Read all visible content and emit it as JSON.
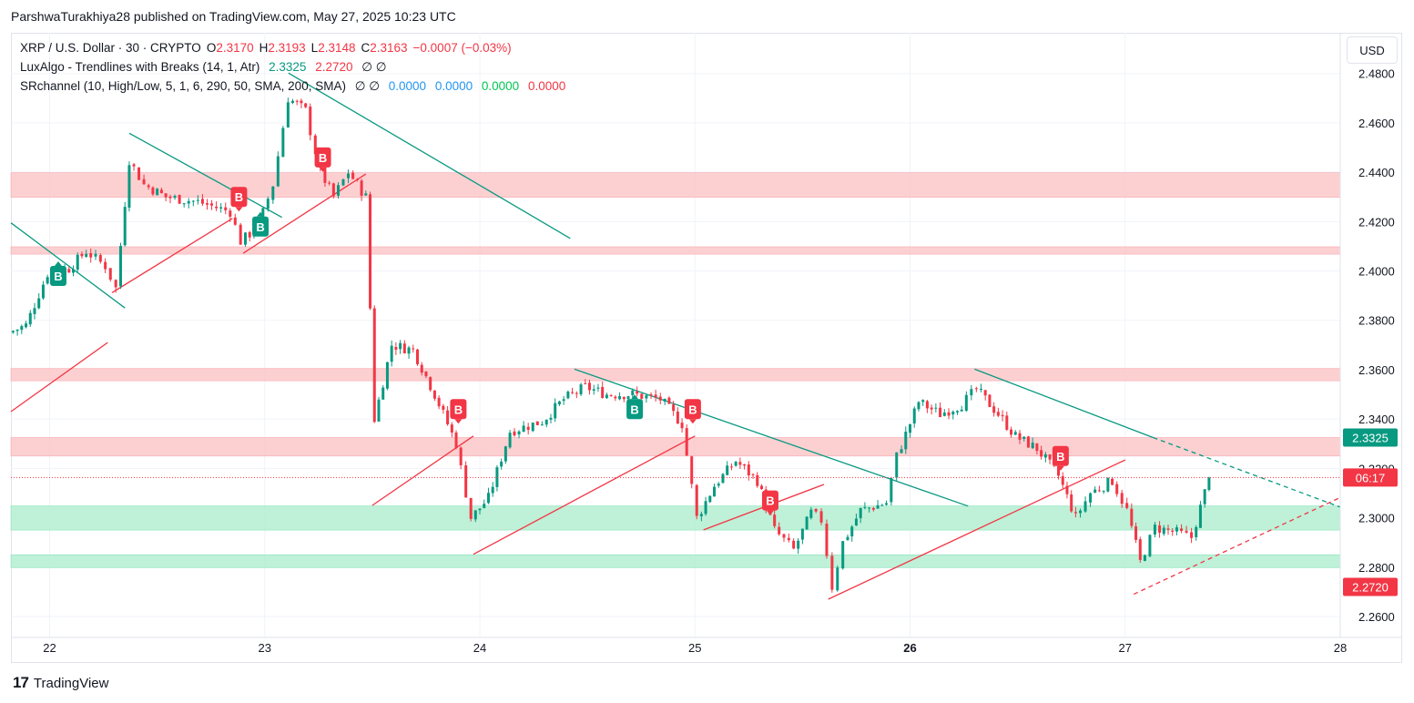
{
  "header": {
    "text": "ParshwaTurakhiya28 published on TradingView.com, May 27, 2025 10:23 UTC"
  },
  "legend": {
    "symbol": "XRP / U.S. Dollar · 30 · CRYPTO",
    "o_label": "O",
    "o_value": "2.3170",
    "h_label": "H",
    "h_value": "2.3193",
    "l_label": "L",
    "l_value": "2.3148",
    "c_label": "C",
    "c_value": "2.3163",
    "change": "−0.0007 (−0.03%)",
    "luxalgo_name": "LuxAlgo - Trendlines with Breaks (14, 1, Atr)",
    "luxalgo_v1": "2.3325",
    "luxalgo_v2": "2.2720",
    "luxalgo_phi": "∅ ∅",
    "sr_name": "SRchannel (10, High/Low, 5, 1, 6, 290, 50, SMA, 200, SMA)",
    "sr_phi": "∅ ∅",
    "sr_v1": "0.0000",
    "sr_v2": "0.0000",
    "sr_v3": "0.0000",
    "sr_v4": "0.0000"
  },
  "currency_button": "USD",
  "price_tags": {
    "upper": "2.3325",
    "countdown": "06:17",
    "lower": "2.2720"
  },
  "footer": {
    "brand": "TradingView"
  },
  "colors": {
    "up": "#089981",
    "down": "#f23645",
    "resistance_zone": "#fccbcd",
    "support_zone": "#b7f0d4",
    "trend_teal": "#089981",
    "trend_red": "#f23645"
  },
  "chart_data": {
    "type": "candlestick",
    "symbol": "XRP / U.S. Dollar",
    "interval": "30",
    "y_ticks": [
      "2.4800",
      "2.4600",
      "2.4400",
      "2.4200",
      "2.4000",
      "2.3800",
      "2.3600",
      "2.3400",
      "2.3200",
      "2.3000",
      "2.2800",
      "2.2600"
    ],
    "ylim": [
      2.2515,
      2.4965
    ],
    "x_ticks": [
      "22",
      "23",
      "24",
      "25",
      "26",
      "27",
      "28"
    ],
    "x_tick_values": [
      22,
      23,
      24,
      25,
      26,
      27,
      28
    ],
    "xlim": [
      21.82,
      28.0
    ],
    "last_price": 2.3163,
    "zones": [
      {
        "type": "resistance",
        "from": 2.4298,
        "to": 2.4398
      },
      {
        "type": "resistance",
        "from": 2.4068,
        "to": 2.4098
      },
      {
        "type": "resistance",
        "from": 2.3555,
        "to": 2.3605
      },
      {
        "type": "resistance",
        "from": 2.325,
        "to": 2.3325
      },
      {
        "type": "support",
        "from": 2.295,
        "to": 2.3048
      },
      {
        "type": "support",
        "from": 2.2798,
        "to": 2.285
      }
    ],
    "trendlines": [
      {
        "color": "teal",
        "x1": 21.82,
        "y1": 2.4195,
        "x2": 22.35,
        "y2": 2.385
      },
      {
        "color": "teal",
        "x1": 22.37,
        "y1": 2.4558,
        "x2": 23.08,
        "y2": 2.4217
      },
      {
        "color": "teal",
        "x1": 23.11,
        "y1": 2.4802,
        "x2": 24.42,
        "y2": 2.4132
      },
      {
        "color": "teal",
        "x1": 24.44,
        "y1": 2.3602,
        "x2": 26.27,
        "y2": 2.3047
      },
      {
        "color": "teal",
        "x1": 26.3,
        "y1": 2.3602,
        "x2": 27.13,
        "y2": 2.3325
      },
      {
        "color": "teal",
        "x1": 27.13,
        "y1": 2.3325,
        "x2": 28.0,
        "y2": 2.3043,
        "dashed": true
      },
      {
        "color": "red",
        "x1": 21.82,
        "y1": 2.343,
        "x2": 22.27,
        "y2": 2.371
      },
      {
        "color": "red",
        "x1": 22.29,
        "y1": 2.3912,
        "x2": 22.85,
        "y2": 2.4213
      },
      {
        "color": "red",
        "x1": 22.9,
        "y1": 2.4072,
        "x2": 23.47,
        "y2": 2.4393
      },
      {
        "color": "red",
        "x1": 23.5,
        "y1": 2.305,
        "x2": 23.97,
        "y2": 2.3331
      },
      {
        "color": "red",
        "x1": 23.97,
        "y1": 2.2852,
        "x2": 25.0,
        "y2": 2.3331
      },
      {
        "color": "red",
        "x1": 25.04,
        "y1": 2.2951,
        "x2": 25.6,
        "y2": 2.3135
      },
      {
        "color": "red",
        "x1": 25.62,
        "y1": 2.267,
        "x2": 26.72,
        "y2": 2.312
      },
      {
        "color": "red",
        "x1": 26.72,
        "y1": 2.312,
        "x2": 27.0,
        "y2": 2.3234
      },
      {
        "color": "red",
        "x1": 27.04,
        "y1": 2.269,
        "x2": 28.0,
        "y2": 2.3082,
        "dashed": true
      }
    ],
    "signals": [
      {
        "label": "B",
        "type": "bull",
        "x": 22.04,
        "y": 2.398
      },
      {
        "label": "B",
        "type": "bear",
        "x": 22.88,
        "y": 2.43
      },
      {
        "label": "B",
        "type": "bull",
        "x": 22.98,
        "y": 2.418
      },
      {
        "label": "B",
        "type": "bear",
        "x": 23.27,
        "y": 2.446
      },
      {
        "label": "B",
        "type": "bear",
        "x": 23.9,
        "y": 2.344
      },
      {
        "label": "B",
        "type": "bull",
        "x": 24.72,
        "y": 2.344
      },
      {
        "label": "B",
        "type": "bear",
        "x": 24.99,
        "y": 2.344
      },
      {
        "label": "B",
        "type": "bear",
        "x": 25.35,
        "y": 2.307
      },
      {
        "label": "B",
        "type": "bear",
        "x": 26.7,
        "y": 2.325
      }
    ],
    "anchors": [
      [
        21.82,
        2.375
      ],
      [
        21.9,
        2.378
      ],
      [
        22.0,
        2.399
      ],
      [
        22.1,
        2.401
      ],
      [
        22.18,
        2.408
      ],
      [
        22.27,
        2.402
      ],
      [
        22.32,
        2.393
      ],
      [
        22.38,
        2.445
      ],
      [
        22.45,
        2.435
      ],
      [
        22.55,
        2.43
      ],
      [
        22.7,
        2.428
      ],
      [
        22.85,
        2.424
      ],
      [
        22.9,
        2.412
      ],
      [
        22.98,
        2.418
      ],
      [
        23.05,
        2.435
      ],
      [
        23.12,
        2.47
      ],
      [
        23.2,
        2.465
      ],
      [
        23.27,
        2.44
      ],
      [
        23.33,
        2.43
      ],
      [
        23.4,
        2.44
      ],
      [
        23.48,
        2.43
      ],
      [
        23.52,
        2.34
      ],
      [
        23.6,
        2.37
      ],
      [
        23.7,
        2.368
      ],
      [
        23.8,
        2.35
      ],
      [
        23.9,
        2.33
      ],
      [
        23.97,
        2.3
      ],
      [
        24.05,
        2.308
      ],
      [
        24.15,
        2.335
      ],
      [
        24.3,
        2.339
      ],
      [
        24.4,
        2.348
      ],
      [
        24.5,
        2.353
      ],
      [
        24.6,
        2.35
      ],
      [
        24.72,
        2.35
      ],
      [
        24.85,
        2.348
      ],
      [
        24.95,
        2.338
      ],
      [
        25.02,
        2.3
      ],
      [
        25.1,
        2.313
      ],
      [
        25.2,
        2.323
      ],
      [
        25.3,
        2.315
      ],
      [
        25.38,
        2.295
      ],
      [
        25.47,
        2.287
      ],
      [
        25.55,
        2.302
      ],
      [
        25.6,
        2.299
      ],
      [
        25.65,
        2.272
      ],
      [
        25.7,
        2.29
      ],
      [
        25.78,
        2.303
      ],
      [
        25.9,
        2.306
      ],
      [
        25.95,
        2.325
      ],
      [
        26.05,
        2.347
      ],
      [
        26.15,
        2.342
      ],
      [
        26.25,
        2.346
      ],
      [
        26.32,
        2.352
      ],
      [
        26.42,
        2.342
      ],
      [
        26.5,
        2.333
      ],
      [
        26.6,
        2.328
      ],
      [
        26.7,
        2.317
      ],
      [
        26.78,
        2.3
      ],
      [
        26.85,
        2.31
      ],
      [
        26.95,
        2.315
      ],
      [
        27.02,
        2.303
      ],
      [
        27.08,
        2.282
      ],
      [
        27.15,
        2.296
      ],
      [
        27.25,
        2.294
      ],
      [
        27.32,
        2.292
      ],
      [
        27.4,
        2.3163
      ]
    ]
  }
}
